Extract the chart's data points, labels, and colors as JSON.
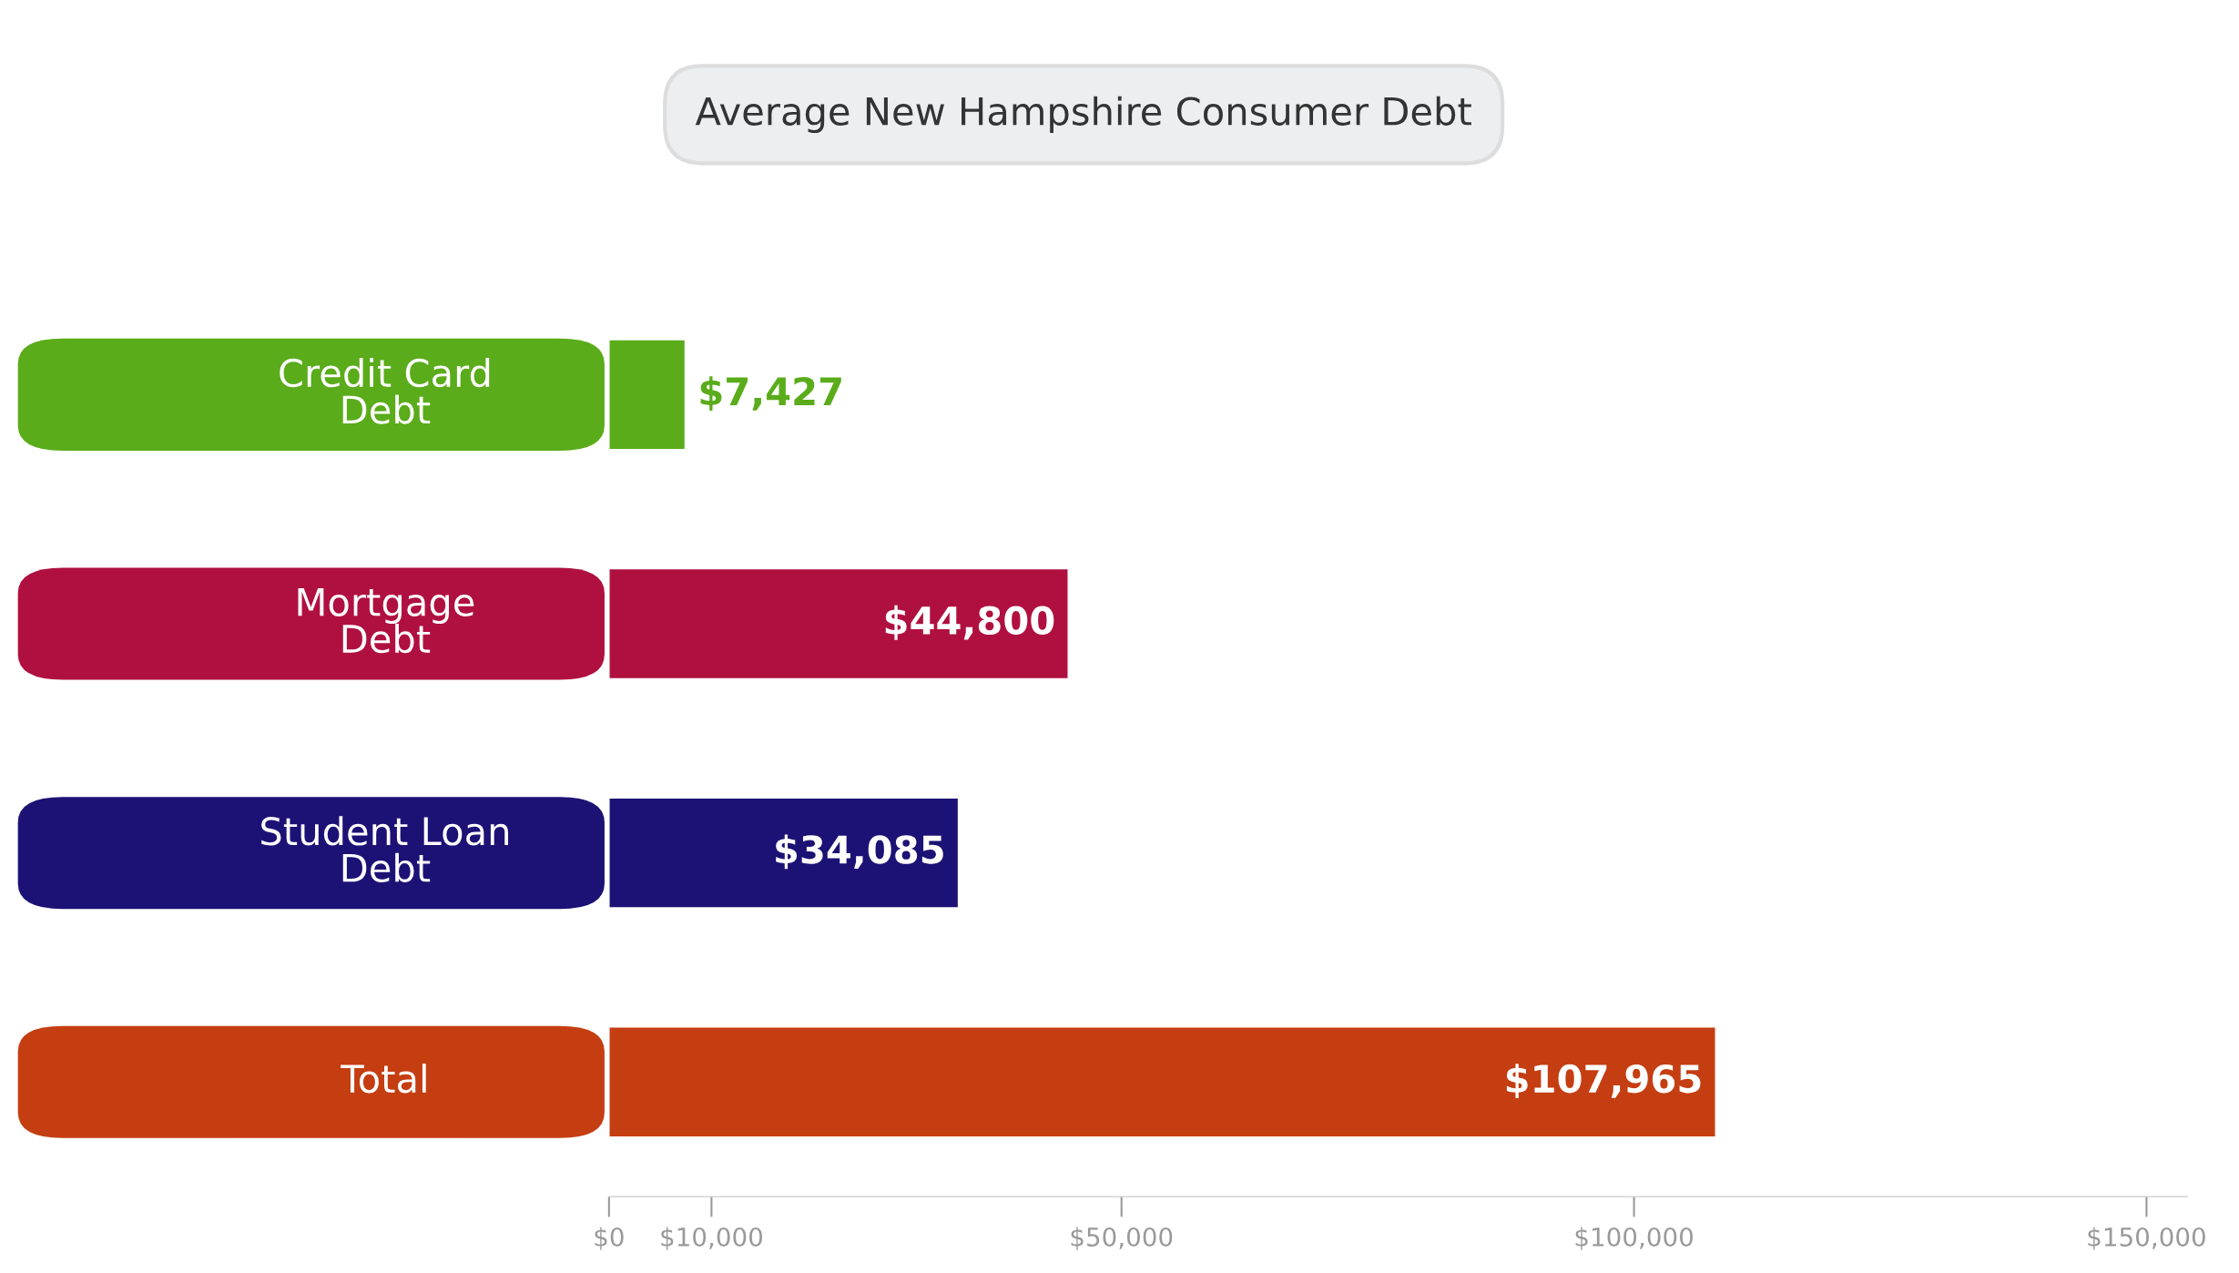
{
  "chart_data": {
    "type": "bar",
    "orientation": "horizontal",
    "title": "Average New Hampshire Consumer Debt",
    "categories": [
      "Credit Card\nDebt",
      "Mortgage\nDebt",
      "Student Loan\nDebt",
      "Total"
    ],
    "values": [
      7427,
      44800,
      34085,
      107965
    ],
    "colors": [
      "#5aac1a",
      "#b01040",
      "#1c1275",
      "#c43e12"
    ],
    "value_labels": [
      "$7,427",
      "$44,800",
      "$34,085",
      "$107,965"
    ],
    "xlim": [
      0,
      154000
    ],
    "xticks": [
      {
        "value": 0,
        "label": "$0"
      },
      {
        "value": 10000,
        "label": "$10,000"
      },
      {
        "value": 50000,
        "label": "$50,000"
      },
      {
        "value": 100000,
        "label": "$100,000"
      },
      {
        "value": 150000,
        "label": "$150,000"
      }
    ],
    "grid": false,
    "legend": false
  }
}
